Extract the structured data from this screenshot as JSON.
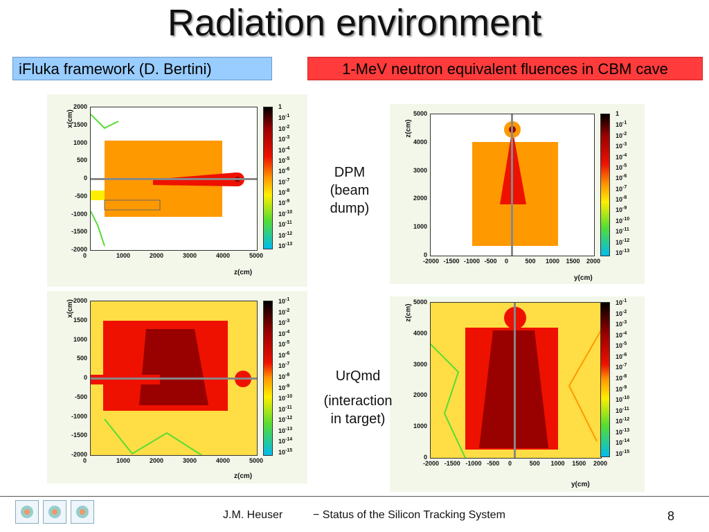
{
  "slide": {
    "title": "Radiation environment",
    "left_box": "iFluka framework (D. Bertini)",
    "right_box": "1-MeV neutron equivalent fluences in CBM cave",
    "label_dpm": [
      "DPM",
      "(beam",
      "dump)"
    ],
    "label_urqmd": [
      "UrQmd",
      "(interaction",
      "in target)"
    ],
    "footer_author": "J.M. Heuser",
    "footer_title": "− Status of the Silicon Tracking System",
    "page_number": "8"
  },
  "plots": {
    "zx_xticks": [
      "0",
      "1000",
      "2000",
      "3000",
      "4000",
      "5000"
    ],
    "zx_yticks": [
      "2000",
      "1500",
      "1000",
      "500",
      "0",
      "-500",
      "-1000",
      "-1500",
      "-2000"
    ],
    "zx_xlabel": "z(cm)",
    "zx_ylabel": "x(cm)",
    "yz_xticks": [
      "-2000",
      "-1500",
      "-1000",
      "-500",
      "0",
      "500",
      "1000",
      "1500",
      "2000"
    ],
    "yz_yticks": [
      "5000",
      "4000",
      "3000",
      "2000",
      "1000",
      "0"
    ],
    "yz_xlabel": "y(cm)",
    "yz_ylabel": "z(cm)",
    "yz_xticks_b": [
      "-2000",
      "-1500",
      "-1000",
      "-500",
      "0",
      "500",
      "1000",
      "1500",
      "2000"
    ],
    "cbar_dpm_left": [
      "1",
      "10",
      "10",
      "10",
      "10",
      "10",
      "10",
      "10",
      "10",
      "10",
      "10",
      "10",
      "10",
      "10"
    ],
    "cbar_dpm_left_exp": [
      "",
      "-1",
      "-2",
      "-3",
      "-4",
      "-5",
      "-6",
      "-7",
      "-8",
      "-9",
      "-10",
      "-11",
      "-12",
      "-13"
    ],
    "cbar_urqmd_exp": [
      "-1",
      "-2",
      "-3",
      "-4",
      "-5",
      "-6",
      "-7",
      "-8",
      "-9",
      "-10",
      "-11",
      "-12",
      "-13",
      "-14",
      "-15"
    ],
    "colors": {
      "orange": "#ff9900",
      "red": "#ee1100",
      "darkred": "#990000",
      "yellow": "#ffee00",
      "green": "#55dd33",
      "cyan": "#00bbee"
    }
  }
}
